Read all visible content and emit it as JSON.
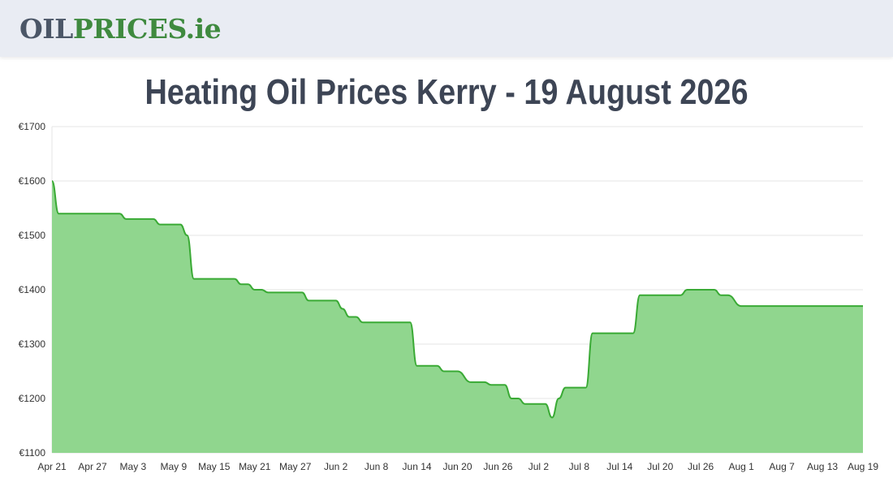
{
  "header": {
    "logo": {
      "part_oil": "OIL",
      "part_prices": "PRICES",
      "part_tld": ".ie"
    }
  },
  "page": {
    "title": "Heating Oil Prices Kerry - 19 August 2026"
  },
  "colors": {
    "line": "#3aaa35",
    "fill": "#90d68e",
    "grid": "#e6e6e6",
    "header_bg": "#e9ecf3",
    "title": "#3d4555"
  },
  "chart_data": {
    "type": "area",
    "title": "",
    "xlabel": "",
    "ylabel": "",
    "ylim": [
      1100,
      1700
    ],
    "y_ticks": [
      1100,
      1200,
      1300,
      1400,
      1500,
      1600,
      1700
    ],
    "y_tick_labels": [
      "€1100",
      "€1200",
      "€1300",
      "€1400",
      "€1500",
      "€1600",
      "€1700"
    ],
    "x_tick_labels": [
      "Apr 21",
      "Apr 27",
      "May 3",
      "May 9",
      "May 15",
      "May 21",
      "May 27",
      "Jun 2",
      "Jun 8",
      "Jun 14",
      "Jun 20",
      "Jun 26",
      "Jul 2",
      "Jul 8",
      "Jul 14",
      "Jul 20",
      "Jul 26",
      "Aug 1",
      "Aug 7",
      "Aug 13",
      "Aug 19"
    ],
    "x_range": [
      "2026-04-21",
      "2026-08-19"
    ],
    "grid": true,
    "legend": "none",
    "series": [
      {
        "points": [
          [
            "2026-04-21",
            1600
          ],
          [
            "2026-04-22",
            1540
          ],
          [
            "2026-04-23",
            1540
          ],
          [
            "2026-05-01",
            1540
          ],
          [
            "2026-05-02",
            1530
          ],
          [
            "2026-05-06",
            1530
          ],
          [
            "2026-05-07",
            1520
          ],
          [
            "2026-05-10",
            1520
          ],
          [
            "2026-05-11",
            1500
          ],
          [
            "2026-05-12",
            1420
          ],
          [
            "2026-05-13",
            1420
          ],
          [
            "2026-05-18",
            1420
          ],
          [
            "2026-05-19",
            1410
          ],
          [
            "2026-05-20",
            1410
          ],
          [
            "2026-05-21",
            1400
          ],
          [
            "2026-05-22",
            1400
          ],
          [
            "2026-05-23",
            1395
          ],
          [
            "2026-05-28",
            1395
          ],
          [
            "2026-05-29",
            1380
          ],
          [
            "2026-06-01",
            1380
          ],
          [
            "2026-06-02",
            1380
          ],
          [
            "2026-06-03",
            1365
          ],
          [
            "2026-06-04",
            1350
          ],
          [
            "2026-06-05",
            1350
          ],
          [
            "2026-06-06",
            1340
          ],
          [
            "2026-06-12",
            1340
          ],
          [
            "2026-06-13",
            1340
          ],
          [
            "2026-06-14",
            1260
          ],
          [
            "2026-06-16",
            1260
          ],
          [
            "2026-06-17",
            1260
          ],
          [
            "2026-06-18",
            1250
          ],
          [
            "2026-06-19",
            1250
          ],
          [
            "2026-06-20",
            1250
          ],
          [
            "2026-06-22",
            1230
          ],
          [
            "2026-06-24",
            1230
          ],
          [
            "2026-06-25",
            1225
          ],
          [
            "2026-06-27",
            1225
          ],
          [
            "2026-06-28",
            1200
          ],
          [
            "2026-06-29",
            1200
          ],
          [
            "2026-06-30",
            1190
          ],
          [
            "2026-07-03",
            1190
          ],
          [
            "2026-07-04",
            1165
          ],
          [
            "2026-07-05",
            1200
          ],
          [
            "2026-07-06",
            1220
          ],
          [
            "2026-07-08",
            1220
          ],
          [
            "2026-07-09",
            1220
          ],
          [
            "2026-07-10",
            1320
          ],
          [
            "2026-07-14",
            1320
          ],
          [
            "2026-07-16",
            1320
          ],
          [
            "2026-07-17",
            1390
          ],
          [
            "2026-07-22",
            1390
          ],
          [
            "2026-07-23",
            1390
          ],
          [
            "2026-07-24",
            1400
          ],
          [
            "2026-07-28",
            1400
          ],
          [
            "2026-07-29",
            1390
          ],
          [
            "2026-07-30",
            1390
          ],
          [
            "2026-08-01",
            1370
          ],
          [
            "2026-08-19",
            1370
          ]
        ]
      }
    ]
  }
}
